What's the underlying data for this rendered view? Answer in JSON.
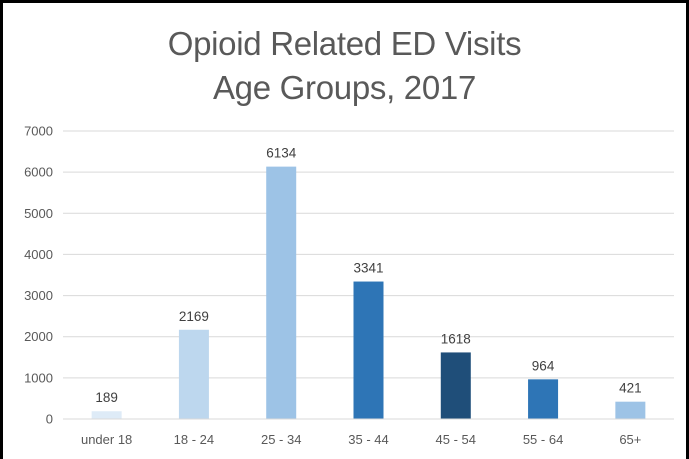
{
  "chart_data": {
    "type": "bar",
    "title_lines": [
      "Opioid Related ED Visits",
      "Age Groups, 2017"
    ],
    "categories": [
      "under 18",
      "18 - 24",
      "25 - 34",
      "35 - 44",
      "45 - 54",
      "55 - 64",
      "65+"
    ],
    "values": [
      189,
      2169,
      6134,
      3341,
      1618,
      964,
      421
    ],
    "bar_colors": [
      "#deebf7",
      "#bdd7ee",
      "#9dc3e6",
      "#2e75b6",
      "#1f4e79",
      "#2e75b6",
      "#9dc3e6"
    ],
    "ylim": [
      0,
      7000
    ],
    "yticks": [
      0,
      1000,
      2000,
      3000,
      4000,
      5000,
      6000,
      7000
    ],
    "grid": true,
    "legend": false
  }
}
